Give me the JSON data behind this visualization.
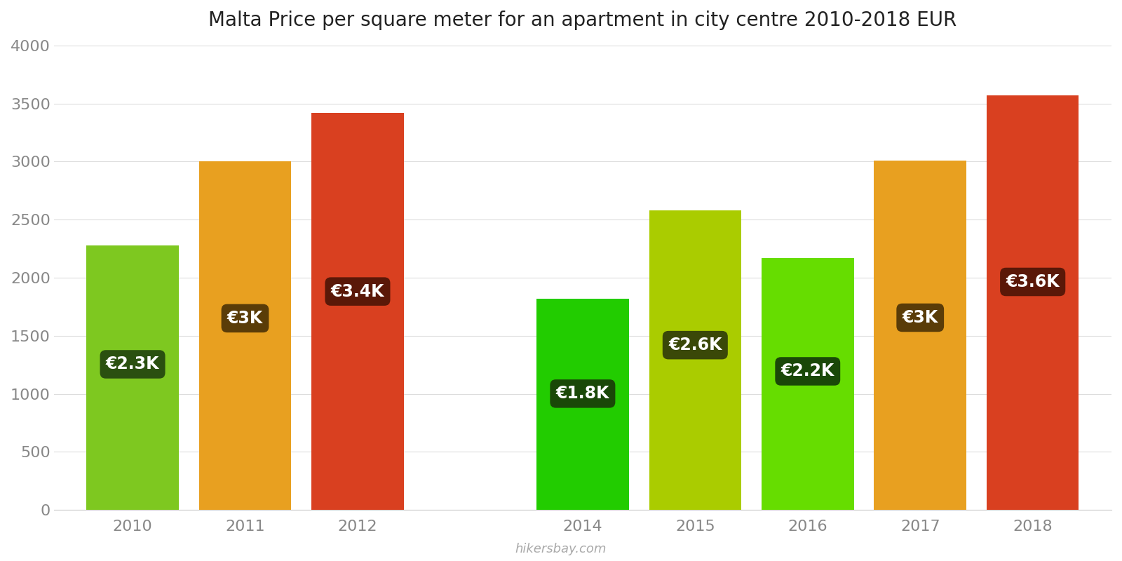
{
  "title": "Malta Price per square meter for an apartment in city centre 2010-2018 EUR",
  "years": [
    2010,
    2011,
    2012,
    2014,
    2015,
    2016,
    2017,
    2018
  ],
  "values": [
    2280,
    3000,
    3420,
    1820,
    2580,
    2170,
    3010,
    3570
  ],
  "labels": [
    "€2.3K",
    "€3K",
    "€3.4K",
    "€1.8K",
    "€2.6K",
    "€2.2K",
    "€3K",
    "€3.6K"
  ],
  "bar_colors": [
    "#7ec820",
    "#e8a020",
    "#d94020",
    "#22cc00",
    "#aacc00",
    "#66dd00",
    "#e8a020",
    "#d94020"
  ],
  "label_bg_colors": [
    "#2a5010",
    "#5a3c08",
    "#5a1808",
    "#1a4808",
    "#3a4808",
    "#1a4808",
    "#5a3c08",
    "#5a1808"
  ],
  "ylim": [
    0,
    4000
  ],
  "yticks": [
    0,
    500,
    1000,
    1500,
    2000,
    2500,
    3000,
    3500,
    4000
  ],
  "watermark": "hikersbay.com",
  "background_color": "#ffffff",
  "title_fontsize": 20,
  "tick_fontsize": 16,
  "label_fontsize": 17,
  "bar_width": 0.82
}
